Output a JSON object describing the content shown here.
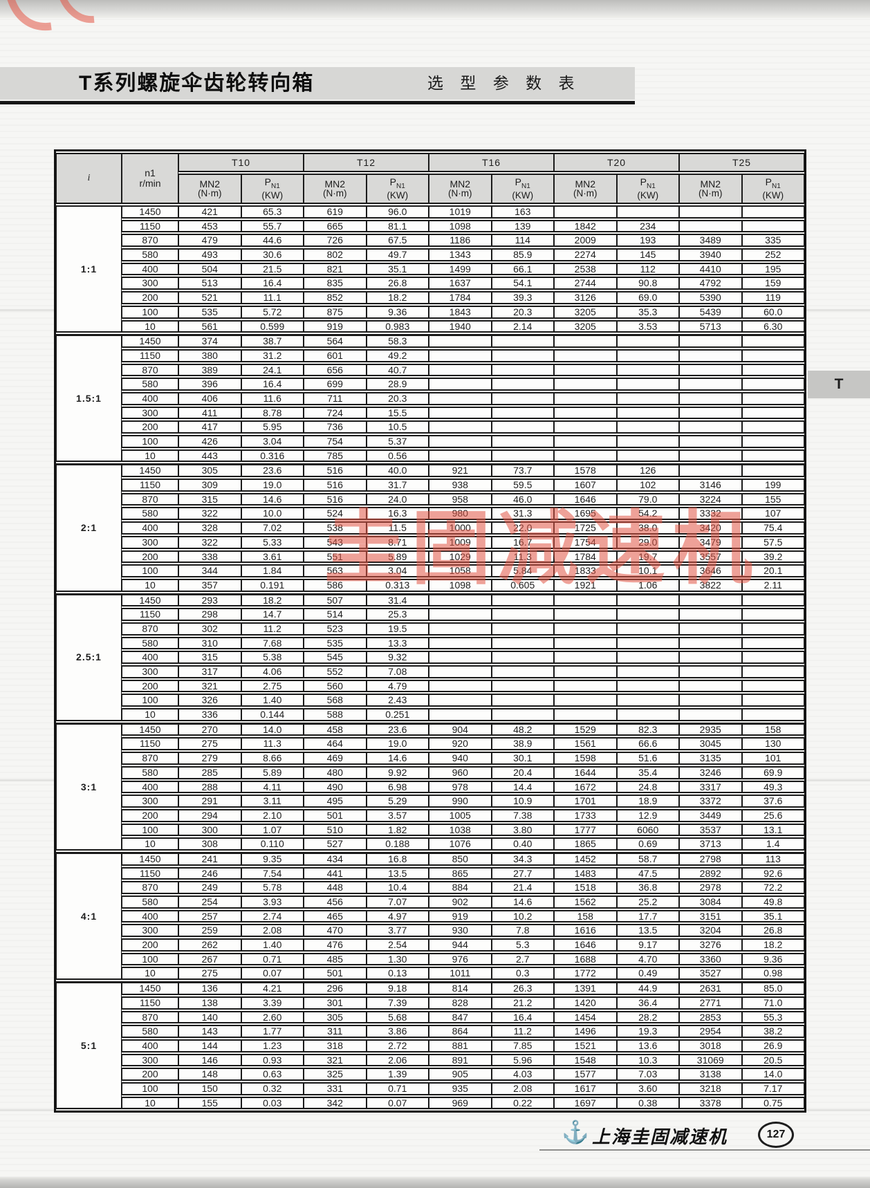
{
  "page": {
    "header": {
      "title": "T系列螺旋伞齿轮转向箱",
      "subtitle": "选 型 参 数 表"
    },
    "side_tab": "T",
    "watermark": "圭固减速机",
    "footer": {
      "brand": "上海圭固减速机",
      "page_number": "127",
      "logo": "anchor-logo"
    }
  },
  "table": {
    "col_i_label": "i",
    "col_n1_line1": "n1",
    "col_n1_line2": "r/min",
    "groups": [
      "T10",
      "T12",
      "T16",
      "T20",
      "T25"
    ],
    "sub_mn2_line1": "MN2",
    "sub_mn2_line2": "(N·m)",
    "sub_pn1_main": "P",
    "sub_pn1_sub": "N1",
    "sub_pn1_line2": "(KW)",
    "sections": [
      {
        "ratio": "1:1",
        "rows": [
          {
            "n1": "1450",
            "v": [
              "421",
              "65.3",
              "619",
              "96.0",
              "1019",
              "163",
              "",
              "",
              "",
              ""
            ]
          },
          {
            "n1": "1150",
            "v": [
              "453",
              "55.7",
              "665",
              "81.1",
              "1098",
              "139",
              "1842",
              "234",
              "",
              ""
            ]
          },
          {
            "n1": "870",
            "v": [
              "479",
              "44.6",
              "726",
              "67.5",
              "1186",
              "114",
              "2009",
              "193",
              "3489",
              "335"
            ]
          },
          {
            "n1": "580",
            "v": [
              "493",
              "30.6",
              "802",
              "49.7",
              "1343",
              "85.9",
              "2274",
              "145",
              "3940",
              "252"
            ]
          },
          {
            "n1": "400",
            "v": [
              "504",
              "21.5",
              "821",
              "35.1",
              "1499",
              "66.1",
              "2538",
              "112",
              "4410",
              "195"
            ]
          },
          {
            "n1": "300",
            "v": [
              "513",
              "16.4",
              "835",
              "26.8",
              "1637",
              "54.1",
              "2744",
              "90.8",
              "4792",
              "159"
            ]
          },
          {
            "n1": "200",
            "v": [
              "521",
              "11.1",
              "852",
              "18.2",
              "1784",
              "39.3",
              "3126",
              "69.0",
              "5390",
              "119"
            ]
          },
          {
            "n1": "100",
            "v": [
              "535",
              "5.72",
              "875",
              "9.36",
              "1843",
              "20.3",
              "3205",
              "35.3",
              "5439",
              "60.0"
            ]
          },
          {
            "n1": "10",
            "v": [
              "561",
              "0.599",
              "919",
              "0.983",
              "1940",
              "2.14",
              "3205",
              "3.53",
              "5713",
              "6.30"
            ]
          }
        ]
      },
      {
        "ratio": "1.5:1",
        "rows": [
          {
            "n1": "1450",
            "v": [
              "374",
              "38.7",
              "564",
              "58.3",
              "",
              "",
              "",
              "",
              "",
              ""
            ]
          },
          {
            "n1": "1150",
            "v": [
              "380",
              "31.2",
              "601",
              "49.2",
              "",
              "",
              "",
              "",
              "",
              ""
            ]
          },
          {
            "n1": "870",
            "v": [
              "389",
              "24.1",
              "656",
              "40.7",
              "",
              "",
              "",
              "",
              "",
              ""
            ]
          },
          {
            "n1": "580",
            "v": [
              "396",
              "16.4",
              "699",
              "28.9",
              "",
              "",
              "",
              "",
              "",
              ""
            ]
          },
          {
            "n1": "400",
            "v": [
              "406",
              "11.6",
              "711",
              "20.3",
              "",
              "",
              "",
              "",
              "",
              ""
            ]
          },
          {
            "n1": "300",
            "v": [
              "411",
              "8.78",
              "724",
              "15.5",
              "",
              "",
              "",
              "",
              "",
              ""
            ]
          },
          {
            "n1": "200",
            "v": [
              "417",
              "5.95",
              "736",
              "10.5",
              "",
              "",
              "",
              "",
              "",
              ""
            ]
          },
          {
            "n1": "100",
            "v": [
              "426",
              "3.04",
              "754",
              "5.37",
              "",
              "",
              "",
              "",
              "",
              ""
            ]
          },
          {
            "n1": "10",
            "v": [
              "443",
              "0.316",
              "785",
              "0.56",
              "",
              "",
              "",
              "",
              "",
              ""
            ]
          }
        ]
      },
      {
        "ratio": "2:1",
        "rows": [
          {
            "n1": "1450",
            "v": [
              "305",
              "23.6",
              "516",
              "40.0",
              "921",
              "73.7",
              "1578",
              "126",
              "",
              ""
            ]
          },
          {
            "n1": "1150",
            "v": [
              "309",
              "19.0",
              "516",
              "31.7",
              "938",
              "59.5",
              "1607",
              "102",
              "3146",
              "199"
            ]
          },
          {
            "n1": "870",
            "v": [
              "315",
              "14.6",
              "516",
              "24.0",
              "958",
              "46.0",
              "1646",
              "79.0",
              "3224",
              "155"
            ]
          },
          {
            "n1": "580",
            "v": [
              "322",
              "10.0",
              "524",
              "16.3",
              "980",
              "31.3",
              "1695",
              "54.2",
              "3332",
              "107"
            ]
          },
          {
            "n1": "400",
            "v": [
              "328",
              "7.02",
              "538",
              "11.5",
              "1000",
              "22.0",
              "1725",
              "38.0",
              "3420",
              "75.4"
            ]
          },
          {
            "n1": "300",
            "v": [
              "322",
              "5.33",
              "543",
              "8.71",
              "1009",
              "16.7",
              "1754",
              "29.0",
              "3479",
              "57.5"
            ]
          },
          {
            "n1": "200",
            "v": [
              "338",
              "3.61",
              "551",
              "5.89",
              "1029",
              "11.3",
              "1784",
              "19.7",
              "3557",
              "39.2"
            ]
          },
          {
            "n1": "100",
            "v": [
              "344",
              "1.84",
              "563",
              "3.04",
              "1058",
              "5.84",
              "1833",
              "10.1",
              "3646",
              "20.1"
            ]
          },
          {
            "n1": "10",
            "v": [
              "357",
              "0.191",
              "586",
              "0.313",
              "1098",
              "0.605",
              "1921",
              "1.06",
              "3822",
              "2.11"
            ]
          }
        ]
      },
      {
        "ratio": "2.5:1",
        "rows": [
          {
            "n1": "1450",
            "v": [
              "293",
              "18.2",
              "507",
              "31.4",
              "",
              "",
              "",
              "",
              "",
              ""
            ]
          },
          {
            "n1": "1150",
            "v": [
              "298",
              "14.7",
              "514",
              "25.3",
              "",
              "",
              "",
              "",
              "",
              ""
            ]
          },
          {
            "n1": "870",
            "v": [
              "302",
              "11.2",
              "523",
              "19.5",
              "",
              "",
              "",
              "",
              "",
              ""
            ]
          },
          {
            "n1": "580",
            "v": [
              "310",
              "7.68",
              "535",
              "13.3",
              "",
              "",
              "",
              "",
              "",
              ""
            ]
          },
          {
            "n1": "400",
            "v": [
              "315",
              "5.38",
              "545",
              "9.32",
              "",
              "",
              "",
              "",
              "",
              ""
            ]
          },
          {
            "n1": "300",
            "v": [
              "317",
              "4.06",
              "552",
              "7.08",
              "",
              "",
              "",
              "",
              "",
              ""
            ]
          },
          {
            "n1": "200",
            "v": [
              "321",
              "2.75",
              "560",
              "4.79",
              "",
              "",
              "",
              "",
              "",
              ""
            ]
          },
          {
            "n1": "100",
            "v": [
              "326",
              "1.40",
              "568",
              "2.43",
              "",
              "",
              "",
              "",
              "",
              ""
            ]
          },
          {
            "n1": "10",
            "v": [
              "336",
              "0.144",
              "588",
              "0.251",
              "",
              "",
              "",
              "",
              "",
              ""
            ]
          }
        ]
      },
      {
        "ratio": "3:1",
        "rows": [
          {
            "n1": "1450",
            "v": [
              "270",
              "14.0",
              "458",
              "23.6",
              "904",
              "48.2",
              "1529",
              "82.3",
              "2935",
              "158"
            ]
          },
          {
            "n1": "1150",
            "v": [
              "275",
              "11.3",
              "464",
              "19.0",
              "920",
              "38.9",
              "1561",
              "66.6",
              "3045",
              "130"
            ]
          },
          {
            "n1": "870",
            "v": [
              "279",
              "8.66",
              "469",
              "14.6",
              "940",
              "30.1",
              "1598",
              "51.6",
              "3135",
              "101"
            ]
          },
          {
            "n1": "580",
            "v": [
              "285",
              "5.89",
              "480",
              "9.92",
              "960",
              "20.4",
              "1644",
              "35.4",
              "3246",
              "69.9"
            ]
          },
          {
            "n1": "400",
            "v": [
              "288",
              "4.11",
              "490",
              "6.98",
              "978",
              "14.4",
              "1672",
              "24.8",
              "3317",
              "49.3"
            ]
          },
          {
            "n1": "300",
            "v": [
              "291",
              "3.11",
              "495",
              "5.29",
              "990",
              "10.9",
              "1701",
              "18.9",
              "3372",
              "37.6"
            ]
          },
          {
            "n1": "200",
            "v": [
              "294",
              "2.10",
              "501",
              "3.57",
              "1005",
              "7.38",
              "1733",
              "12.9",
              "3449",
              "25.6"
            ]
          },
          {
            "n1": "100",
            "v": [
              "300",
              "1.07",
              "510",
              "1.82",
              "1038",
              "3.80",
              "1777",
              "6060",
              "3537",
              "13.1"
            ]
          },
          {
            "n1": "10",
            "v": [
              "308",
              "0.110",
              "527",
              "0.188",
              "1076",
              "0.40",
              "1865",
              "0.69",
              "3713",
              "1.4"
            ]
          }
        ]
      },
      {
        "ratio": "4:1",
        "rows": [
          {
            "n1": "1450",
            "v": [
              "241",
              "9.35",
              "434",
              "16.8",
              "850",
              "34.3",
              "1452",
              "58.7",
              "2798",
              "113"
            ]
          },
          {
            "n1": "1150",
            "v": [
              "246",
              "7.54",
              "441",
              "13.5",
              "865",
              "27.7",
              "1483",
              "47.5",
              "2892",
              "92.6"
            ]
          },
          {
            "n1": "870",
            "v": [
              "249",
              "5.78",
              "448",
              "10.4",
              "884",
              "21.4",
              "1518",
              "36.8",
              "2978",
              "72.2"
            ]
          },
          {
            "n1": "580",
            "v": [
              "254",
              "3.93",
              "456",
              "7.07",
              "902",
              "14.6",
              "1562",
              "25.2",
              "3084",
              "49.8"
            ]
          },
          {
            "n1": "400",
            "v": [
              "257",
              "2.74",
              "465",
              "4.97",
              "919",
              "10.2",
              "158",
              "17.7",
              "3151",
              "35.1"
            ]
          },
          {
            "n1": "300",
            "v": [
              "259",
              "2.08",
              "470",
              "3.77",
              "930",
              "7.8",
              "1616",
              "13.5",
              "3204",
              "26.8"
            ]
          },
          {
            "n1": "200",
            "v": [
              "262",
              "1.40",
              "476",
              "2.54",
              "944",
              "5.3",
              "1646",
              "9.17",
              "3276",
              "18.2"
            ]
          },
          {
            "n1": "100",
            "v": [
              "267",
              "0.71",
              "485",
              "1.30",
              "976",
              "2.7",
              "1688",
              "4.70",
              "3360",
              "9.36"
            ]
          },
          {
            "n1": "10",
            "v": [
              "275",
              "0.07",
              "501",
              "0.13",
              "1011",
              "0.3",
              "1772",
              "0.49",
              "3527",
              "0.98"
            ]
          }
        ]
      },
      {
        "ratio": "5:1",
        "rows": [
          {
            "n1": "1450",
            "v": [
              "136",
              "4.21",
              "296",
              "9.18",
              "814",
              "26.3",
              "1391",
              "44.9",
              "2631",
              "85.0"
            ]
          },
          {
            "n1": "1150",
            "v": [
              "138",
              "3.39",
              "301",
              "7.39",
              "828",
              "21.2",
              "1420",
              "36.4",
              "2771",
              "71.0"
            ]
          },
          {
            "n1": "870",
            "v": [
              "140",
              "2.60",
              "305",
              "5.68",
              "847",
              "16.4",
              "1454",
              "28.2",
              "2853",
              "55.3"
            ]
          },
          {
            "n1": "580",
            "v": [
              "143",
              "1.77",
              "311",
              "3.86",
              "864",
              "11.2",
              "1496",
              "19.3",
              "2954",
              "38.2"
            ]
          },
          {
            "n1": "400",
            "v": [
              "144",
              "1.23",
              "318",
              "2.72",
              "881",
              "7.85",
              "1521",
              "13.6",
              "3018",
              "26.9"
            ]
          },
          {
            "n1": "300",
            "v": [
              "146",
              "0.93",
              "321",
              "2.06",
              "891",
              "5.96",
              "1548",
              "10.3",
              "31069",
              "20.5"
            ]
          },
          {
            "n1": "200",
            "v": [
              "148",
              "0.63",
              "325",
              "1.39",
              "905",
              "4.03",
              "1577",
              "7.03",
              "3138",
              "14.0"
            ]
          },
          {
            "n1": "100",
            "v": [
              "150",
              "0.32",
              "331",
              "0.71",
              "935",
              "2.08",
              "1617",
              "3.60",
              "3218",
              "7.17"
            ]
          },
          {
            "n1": "10",
            "v": [
              "155",
              "0.03",
              "342",
              "0.07",
              "969",
              "0.22",
              "1697",
              "0.38",
              "3378",
              "0.75"
            ]
          }
        ]
      }
    ]
  }
}
